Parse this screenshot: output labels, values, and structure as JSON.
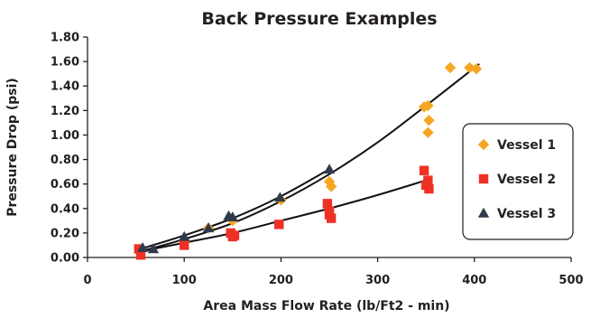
{
  "chart_data": {
    "type": "scatter",
    "title": "Back Pressure Examples",
    "xlabel": "Area Mass Flow Rate (lb/Ft2 - min)",
    "ylabel": "Pressure Drop (psi)",
    "xlim": [
      0,
      500
    ],
    "ylim": [
      0,
      1.8
    ],
    "x_ticks": [
      "0",
      "100",
      "200",
      "300",
      "400",
      "500"
    ],
    "y_ticks": [
      "0.00",
      "0.20",
      "0.40",
      "0.60",
      "0.80",
      "1.00",
      "1.20",
      "1.40",
      "1.60",
      "1.80"
    ],
    "grid": false,
    "legend_position": "right",
    "series": [
      {
        "name": "Vessel 1",
        "marker": "diamond",
        "color": "#f6a623",
        "points": [
          [
            55,
            0.05
          ],
          [
            100,
            0.13
          ],
          [
            125,
            0.24
          ],
          [
            150,
            0.3
          ],
          [
            200,
            0.47
          ],
          [
            250,
            0.62
          ],
          [
            252,
            0.58
          ],
          [
            348,
            1.23
          ],
          [
            352,
            1.24
          ],
          [
            353,
            1.12
          ],
          [
            352,
            1.02
          ],
          [
            375,
            1.55
          ],
          [
            395,
            1.55
          ],
          [
            402,
            1.54
          ]
        ],
        "trendline": [
          [
            55,
            0.05
          ],
          [
            100,
            0.15
          ],
          [
            150,
            0.28
          ],
          [
            200,
            0.46
          ],
          [
            250,
            0.68
          ],
          [
            300,
            0.94
          ],
          [
            350,
            1.24
          ],
          [
            405,
            1.58
          ]
        ]
      },
      {
        "name": "Vessel 2",
        "marker": "square",
        "color": "#ee3124",
        "points": [
          [
            53,
            0.07
          ],
          [
            55,
            0.02
          ],
          [
            100,
            0.1
          ],
          [
            148,
            0.2
          ],
          [
            150,
            0.17
          ],
          [
            152,
            0.18
          ],
          [
            198,
            0.27
          ],
          [
            248,
            0.44
          ],
          [
            250,
            0.38
          ],
          [
            252,
            0.32
          ],
          [
            250,
            0.35
          ],
          [
            348,
            0.71
          ],
          [
            350,
            0.59
          ],
          [
            352,
            0.63
          ],
          [
            353,
            0.56
          ]
        ],
        "trendline": [
          [
            55,
            0.05
          ],
          [
            100,
            0.12
          ],
          [
            150,
            0.2
          ],
          [
            200,
            0.3
          ],
          [
            250,
            0.4
          ],
          [
            300,
            0.51
          ],
          [
            350,
            0.63
          ]
        ]
      },
      {
        "name": "Vessel 3",
        "marker": "triangle",
        "color": "#2f3b4c",
        "points": [
          [
            57,
            0.08
          ],
          [
            68,
            0.07
          ],
          [
            100,
            0.17
          ],
          [
            125,
            0.24
          ],
          [
            146,
            0.34
          ],
          [
            150,
            0.33
          ],
          [
            199,
            0.49
          ],
          [
            250,
            0.72
          ]
        ],
        "trendline": [
          [
            55,
            0.07
          ],
          [
            100,
            0.18
          ],
          [
            150,
            0.32
          ],
          [
            200,
            0.5
          ],
          [
            250,
            0.72
          ]
        ]
      }
    ]
  }
}
